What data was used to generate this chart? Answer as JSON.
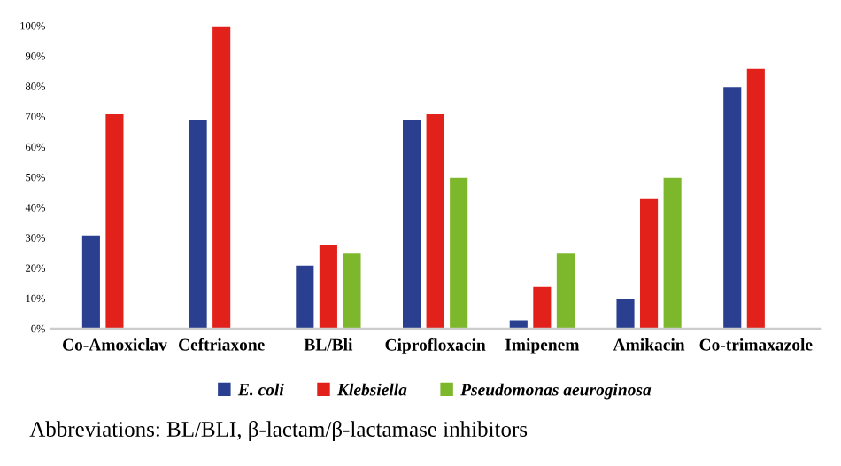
{
  "chart_data": {
    "type": "bar",
    "categories": [
      "Co-Amoxiclav",
      "Ceftriaxone",
      "BL/Bli",
      "Ciprofloxacin",
      "Imipenem",
      "Amikacin",
      "Co-trimaxazole"
    ],
    "series": [
      {
        "name": "E. coli",
        "color": "#2a3f8f",
        "values": [
          31,
          69,
          21,
          69,
          3,
          10,
          80
        ]
      },
      {
        "name": "Klebsiella",
        "color": "#e3211b",
        "values": [
          71,
          100,
          28,
          71,
          14,
          43,
          86
        ]
      },
      {
        "name": "Pseudomonas aeuroginosa",
        "color": "#7db82c",
        "values": [
          null,
          null,
          25,
          50,
          25,
          50,
          null
        ]
      }
    ],
    "ylim": [
      0,
      100
    ],
    "yticks": [
      {
        "value": 0,
        "label": "0%"
      },
      {
        "value": 10,
        "label": "10%"
      },
      {
        "value": 20,
        "label": "20%"
      },
      {
        "value": 30,
        "label": "30%"
      },
      {
        "value": 40,
        "label": "40%"
      },
      {
        "value": 50,
        "label": "50%"
      },
      {
        "value": 60,
        "label": "60%"
      },
      {
        "value": 70,
        "label": "70%"
      },
      {
        "value": 80,
        "label": "80%"
      },
      {
        "value": 90,
        "label": "90%"
      },
      {
        "value": 100,
        "label": "100%"
      }
    ],
    "grid": false,
    "legend": "bottom",
    "annotations": [
      "Abbreviations: BL/BLI, β-lactam/β-lactamase inhibitors"
    ]
  }
}
